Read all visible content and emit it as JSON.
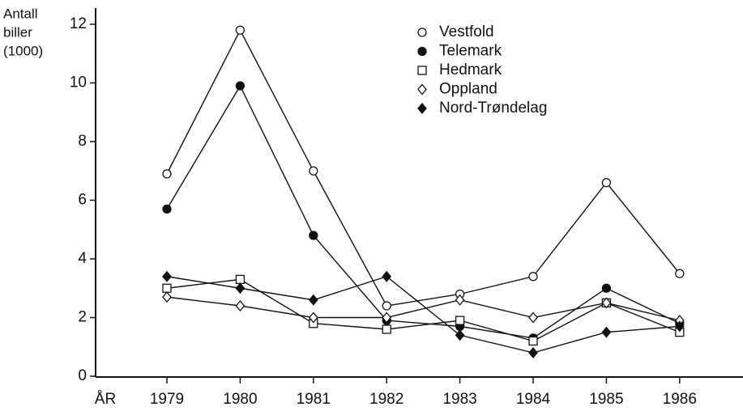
{
  "chart_data": {
    "type": "line",
    "y_label": [
      "Antall",
      "biller",
      "(1000)"
    ],
    "x_label": "ÅR",
    "categories": [
      "1979",
      "1980",
      "1981",
      "1982",
      "1983",
      "1984",
      "1985",
      "1986"
    ],
    "series": [
      {
        "name": "Vestfold",
        "color": "#111111",
        "marker": "circle-open",
        "values": [
          6.9,
          11.8,
          7.0,
          2.4,
          2.8,
          3.4,
          6.6,
          3.5
        ]
      },
      {
        "name": "Telemark",
        "color": "#111111",
        "marker": "circle-filled",
        "values": [
          5.7,
          9.9,
          4.8,
          1.9,
          1.7,
          1.3,
          3.0,
          1.8
        ]
      },
      {
        "name": "Hedmark",
        "color": "#111111",
        "marker": "square-open",
        "values": [
          3.0,
          3.3,
          1.8,
          1.6,
          1.9,
          1.2,
          2.5,
          1.5
        ]
      },
      {
        "name": "Oppland",
        "color": "#111111",
        "marker": "diamond-open",
        "values": [
          2.7,
          2.4,
          2.0,
          2.0,
          2.6,
          2.0,
          2.5,
          1.9
        ]
      },
      {
        "name": "Nord-Trøndelag",
        "color": "#111111",
        "marker": "diamond-filled",
        "values": [
          3.4,
          3.0,
          2.6,
          3.4,
          1.4,
          0.8,
          1.5,
          1.7
        ]
      }
    ],
    "ylim": [
      0,
      12.5
    ],
    "yticks": [
      0,
      2,
      4,
      6,
      8,
      10,
      12
    ],
    "grid": false
  }
}
